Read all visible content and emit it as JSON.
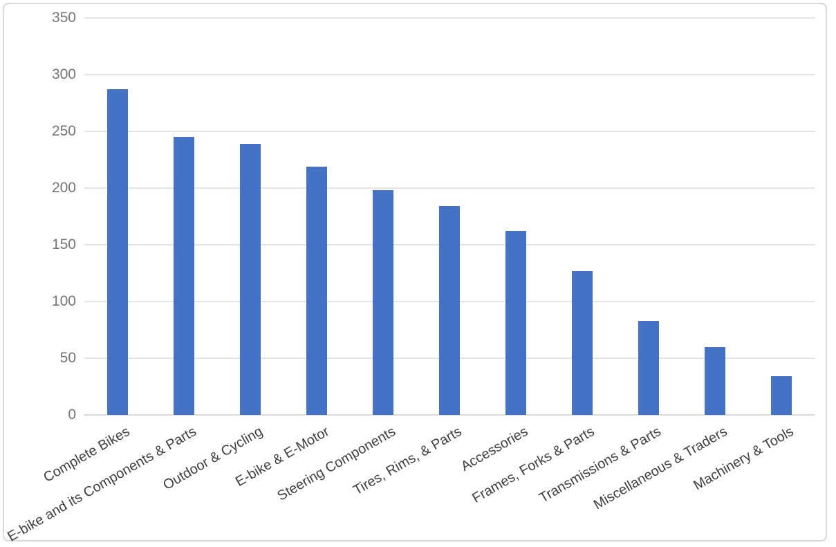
{
  "chart_data": {
    "type": "bar",
    "title": "",
    "xlabel": "",
    "ylabel": "",
    "categories": [
      "Complete Bikes",
      "E-bike and its Components & Parts",
      "Outdoor & Cycling",
      "E-bike & E-Motor",
      "Steering Components",
      "Tires, Rims, & Parts",
      "Accessories",
      "Frames, Forks & Parts",
      "Transmissions & Parts",
      "Miscellaneous & Traders",
      "Machinery & Tools"
    ],
    "values": [
      287,
      245,
      239,
      219,
      198,
      184,
      162,
      127,
      83,
      60,
      34
    ],
    "ylim": [
      0,
      350
    ],
    "yticks": [
      0,
      50,
      100,
      150,
      200,
      250,
      300,
      350
    ],
    "grid": true,
    "legend": false,
    "label_rotation_deg": -30,
    "colors": {
      "bar": "#4472C4",
      "gridline": "#e4e4e4",
      "axis_line": "#d9d9d9",
      "ytick_text": "#757575",
      "category_text": "#3f3f3f",
      "frame_border": "#d9d9d9",
      "background": "#ffffff"
    }
  }
}
